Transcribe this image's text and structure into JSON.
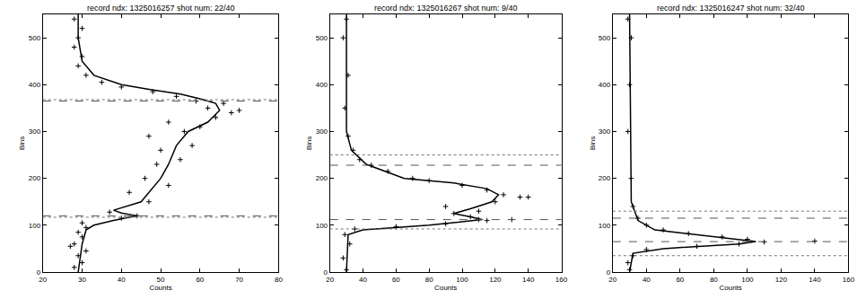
{
  "chart_data": [
    {
      "type": "scatter",
      "title": "record ndx: 1325016257 shot num: 22/40",
      "x_label": "Counts",
      "y_label": "Bins",
      "xlim": [
        20,
        80
      ],
      "xticks": [
        20,
        30,
        40,
        50,
        60,
        70,
        80
      ],
      "ylim": [
        0,
        550
      ],
      "yticks": [
        0,
        100,
        200,
        300,
        400,
        500
      ],
      "dashed_lines": [
        120,
        365
      ],
      "dotted_lines": [
        117,
        368
      ],
      "series": [
        {
          "type": "scatter",
          "marker": "plus",
          "color": "#000000",
          "x": [
            28,
            30,
            29,
            31,
            28,
            30,
            29,
            31,
            27,
            30,
            40,
            44,
            37,
            47,
            42,
            52,
            46,
            49,
            55,
            50,
            58,
            47,
            56,
            60,
            64,
            52,
            68,
            62,
            66,
            59,
            70,
            54,
            48,
            40,
            35,
            31,
            29,
            30,
            28,
            29,
            30,
            28
          ],
          "y": [
            10,
            20,
            35,
            45,
            60,
            75,
            85,
            95,
            55,
            105,
            115,
            120,
            128,
            150,
            170,
            185,
            200,
            230,
            240,
            260,
            270,
            290,
            300,
            310,
            330,
            320,
            340,
            350,
            360,
            365,
            345,
            375,
            385,
            395,
            405,
            420,
            440,
            460,
            480,
            500,
            520,
            540
          ]
        },
        {
          "type": "line",
          "line_style": "solid",
          "color": "#000000",
          "x": [
            29,
            30,
            31,
            33,
            38,
            44,
            40,
            38,
            45,
            48,
            50,
            52,
            53,
            54,
            57,
            62,
            65,
            64,
            60,
            55,
            47,
            40,
            33,
            30,
            29,
            29
          ],
          "y": [
            0,
            60,
            90,
            100,
            110,
            120,
            126,
            132,
            150,
            180,
            200,
            230,
            250,
            270,
            300,
            320,
            345,
            360,
            370,
            380,
            390,
            400,
            420,
            450,
            500,
            550
          ]
        }
      ]
    },
    {
      "type": "scatter",
      "title": "record ndx: 1325016267 shot num: 9/40",
      "x_label": "Counts",
      "y_label": "Bins",
      "xlim": [
        20,
        160
      ],
      "xticks": [
        20,
        40,
        60,
        80,
        100,
        120,
        140,
        160
      ],
      "ylim": [
        0,
        550
      ],
      "yticks": [
        0,
        100,
        200,
        300,
        400,
        500
      ],
      "dashed_lines": [
        112,
        228
      ],
      "dotted_lines": [
        92,
        250
      ],
      "series": [
        {
          "type": "scatter",
          "marker": "plus",
          "color": "#000000",
          "x": [
            30,
            28,
            32,
            29,
            35,
            60,
            90,
            115,
            130,
            105,
            95,
            110,
            90,
            120,
            135,
            125,
            115,
            100,
            80,
            70,
            55,
            45,
            38,
            34,
            31,
            29,
            31,
            28,
            30,
            140,
            110
          ],
          "y": [
            5,
            30,
            60,
            80,
            92,
            97,
            103,
            110,
            112,
            118,
            125,
            130,
            140,
            150,
            160,
            165,
            175,
            185,
            195,
            200,
            215,
            228,
            240,
            260,
            290,
            350,
            420,
            500,
            540,
            160,
            112
          ]
        },
        {
          "type": "line",
          "line_style": "solid",
          "color": "#000000",
          "x": [
            30,
            31,
            40,
            80,
            112,
            105,
            95,
            105,
            118,
            122,
            115,
            95,
            65,
            42,
            33,
            30,
            30
          ],
          "y": [
            0,
            80,
            90,
            100,
            112,
            118,
            125,
            135,
            150,
            165,
            178,
            190,
            200,
            230,
            260,
            300,
            550
          ]
        }
      ]
    },
    {
      "type": "scatter",
      "title": "record ndx: 1325016247 shot num: 32/40",
      "x_label": "Counts",
      "y_label": "Bins",
      "xlim": [
        20,
        160
      ],
      "xticks": [
        20,
        40,
        60,
        80,
        100,
        120,
        140,
        160
      ],
      "ylim": [
        0,
        550
      ],
      "yticks": [
        0,
        100,
        200,
        300,
        400,
        500
      ],
      "dashed_lines": [
        65,
        115
      ],
      "dotted_lines": [
        35,
        130
      ],
      "series": [
        {
          "type": "scatter",
          "marker": "plus",
          "color": "#000000",
          "x": [
            30,
            29,
            32,
            40,
            70,
            95,
            110,
            140,
            100,
            85,
            65,
            50,
            40,
            35,
            32,
            31,
            29,
            30,
            31,
            29
          ],
          "y": [
            5,
            20,
            35,
            48,
            55,
            60,
            64,
            66,
            70,
            75,
            82,
            90,
            100,
            115,
            140,
            200,
            300,
            400,
            500,
            540
          ]
        },
        {
          "type": "line",
          "line_style": "solid",
          "color": "#000000",
          "x": [
            30,
            32,
            50,
            95,
            105,
            80,
            45,
            35,
            31,
            30
          ],
          "y": [
            0,
            40,
            50,
            60,
            65,
            75,
            90,
            110,
            150,
            550
          ]
        }
      ]
    }
  ]
}
